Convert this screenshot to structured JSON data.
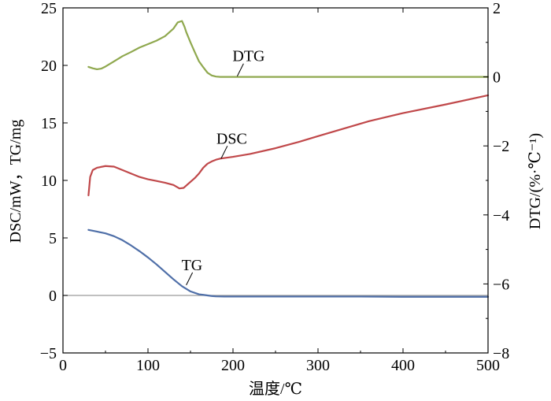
{
  "chart_data": {
    "type": "line",
    "xlabel": "温度/℃",
    "ylabel_left": "DSC/mW，TG/mg",
    "ylabel_right": "DTG/(%·℃⁻¹)",
    "xlim": [
      0,
      500
    ],
    "ylim_left": [
      -5,
      25
    ],
    "ylim_right": [
      -8,
      2
    ],
    "x_ticks": [
      0,
      100,
      200,
      300,
      400,
      500
    ],
    "y_left_ticks": [
      -5,
      0,
      5,
      10,
      15,
      20,
      25
    ],
    "y_right_ticks": [
      -8,
      -6,
      -4,
      -2,
      0,
      2
    ],
    "x_tick_labels": [
      "0",
      "100",
      "200",
      "300",
      "400",
      "500"
    ],
    "y_left_tick_labels": [
      "−5",
      "0",
      "5",
      "10",
      "15",
      "20",
      "25"
    ],
    "y_right_tick_labels": [
      "−8",
      "−6",
      "−4",
      "−2",
      "0",
      "2"
    ],
    "colors": {
      "DTG": "#8fa84e",
      "DSC": "#c0484a",
      "TG": "#4f6fa8",
      "zero_line": "#9a9a9a"
    },
    "series": [
      {
        "name": "DTG",
        "axis": "right",
        "x": [
          30,
          35,
          40,
          45,
          50,
          60,
          70,
          80,
          90,
          100,
          110,
          120,
          130,
          135,
          140,
          143,
          145,
          150,
          155,
          160,
          165,
          170,
          175,
          180,
          185,
          200,
          250,
          300,
          350,
          400,
          450,
          500
        ],
        "y": [
          0.29,
          0.25,
          0.22,
          0.24,
          0.3,
          0.45,
          0.6,
          0.72,
          0.85,
          0.95,
          1.05,
          1.18,
          1.4,
          1.58,
          1.62,
          1.45,
          1.3,
          1.0,
          0.72,
          0.45,
          0.28,
          0.12,
          0.04,
          0.01,
          0.0,
          0.0,
          0.0,
          0.0,
          0.0,
          0.0,
          0.0,
          0.0
        ]
      },
      {
        "name": "DSC",
        "axis": "left",
        "x": [
          30,
          32,
          35,
          40,
          50,
          60,
          70,
          80,
          90,
          100,
          110,
          120,
          130,
          137,
          142,
          148,
          155,
          160,
          165,
          170,
          175,
          180,
          185,
          190,
          200,
          220,
          250,
          280,
          300,
          330,
          360,
          400,
          450,
          500
        ],
        "y": [
          8.7,
          10.3,
          10.9,
          11.1,
          11.25,
          11.2,
          10.9,
          10.6,
          10.3,
          10.1,
          9.95,
          9.8,
          9.6,
          9.3,
          9.35,
          9.75,
          10.2,
          10.6,
          11.1,
          11.45,
          11.65,
          11.8,
          11.9,
          11.95,
          12.05,
          12.3,
          12.8,
          13.4,
          13.85,
          14.5,
          15.15,
          15.85,
          16.6,
          17.4
        ]
      },
      {
        "name": "TG",
        "axis": "left",
        "x": [
          30,
          40,
          50,
          60,
          70,
          80,
          90,
          100,
          110,
          120,
          130,
          140,
          150,
          160,
          165,
          170,
          175,
          180,
          190,
          200,
          250,
          300,
          350,
          400,
          450,
          500
        ],
        "y": [
          5.7,
          5.55,
          5.4,
          5.15,
          4.8,
          4.35,
          3.85,
          3.3,
          2.7,
          2.05,
          1.4,
          0.8,
          0.35,
          0.1,
          0.05,
          0.0,
          -0.05,
          -0.08,
          -0.1,
          -0.1,
          -0.1,
          -0.1,
          -0.1,
          -0.12,
          -0.12,
          -0.12
        ]
      }
    ],
    "annotations": [
      {
        "text": "DTG",
        "series": "DTG",
        "x": 205,
        "y_right": 0.02
      },
      {
        "text": "DSC",
        "series": "DSC",
        "x": 186,
        "y_left": 11.9
      },
      {
        "text": "TG",
        "series": "TG",
        "x": 145,
        "y_left": 0.9
      }
    ],
    "reference_line": {
      "axis": "left",
      "y": 0
    }
  }
}
